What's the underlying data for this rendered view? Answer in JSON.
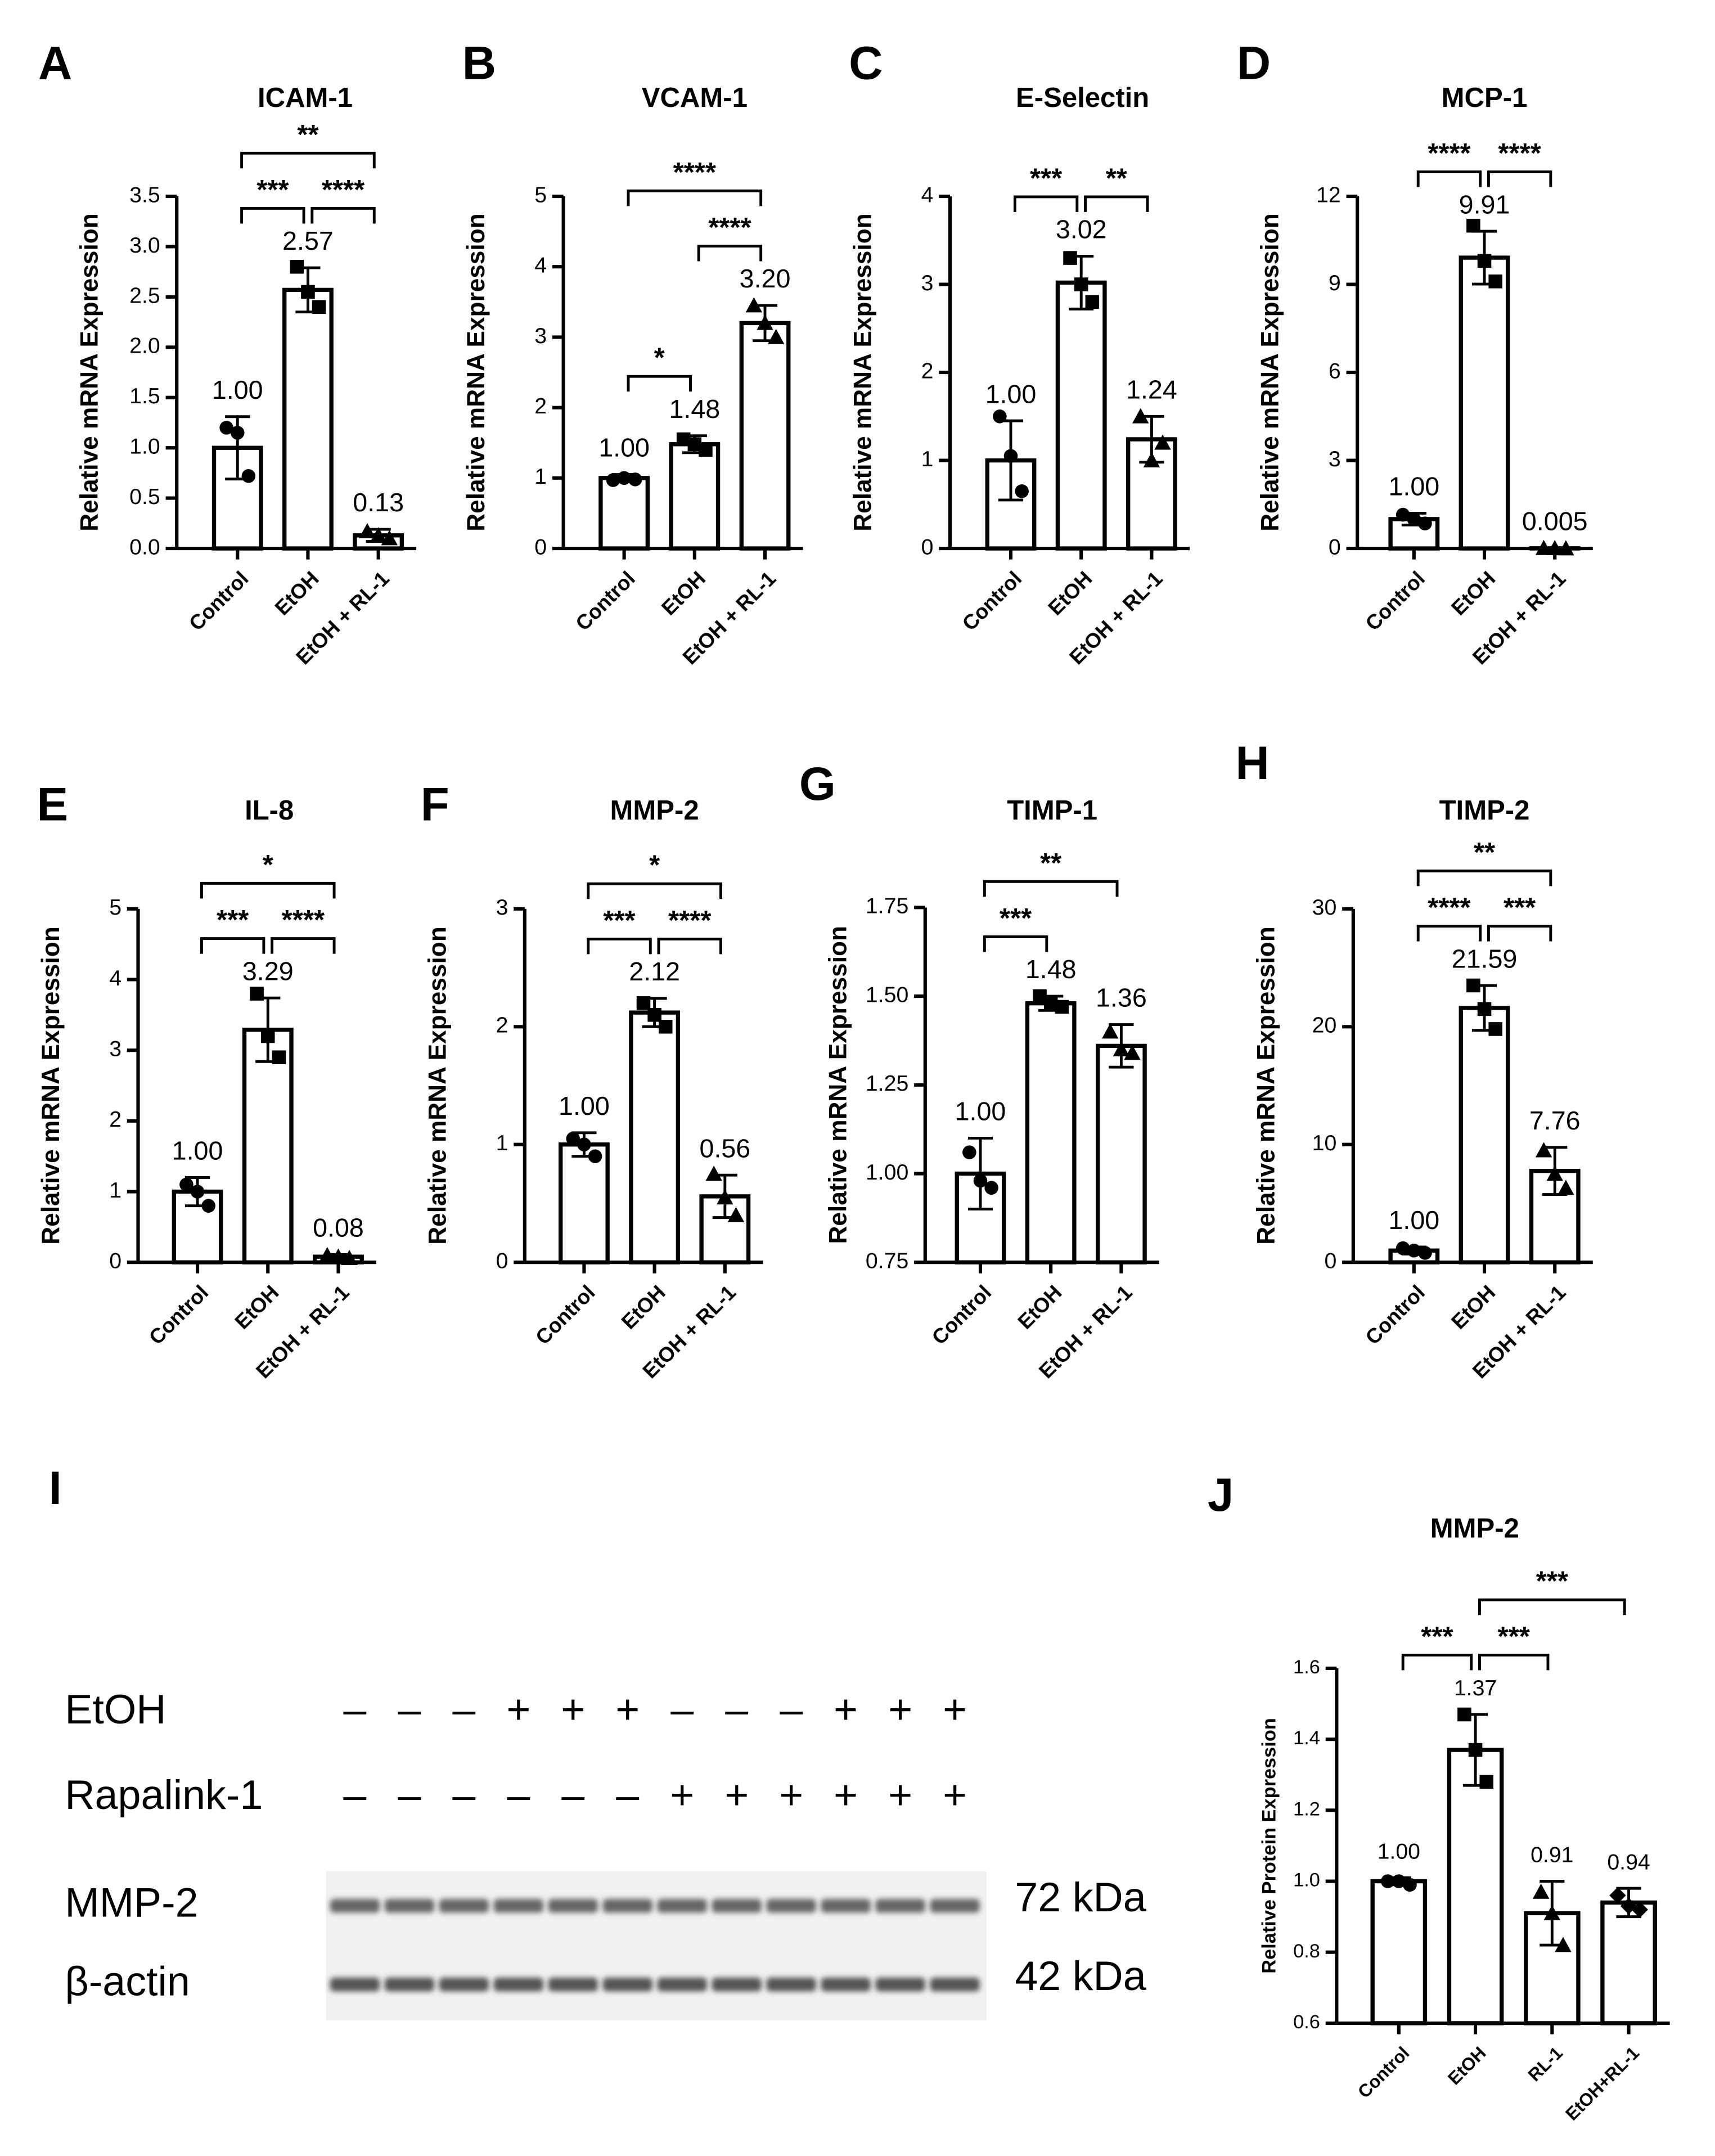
{
  "chart_data": [
    {
      "type": "bar",
      "panel": "A",
      "title": "ICAM-1",
      "ylabel": "Relative mRNA Expression",
      "categories": [
        "Control",
        "EtOH",
        "EtOH + RL-1"
      ],
      "values": [
        1.0,
        2.57,
        0.13
      ],
      "value_labels": [
        "1.00",
        "2.57",
        "0.13"
      ],
      "errors": [
        0.31,
        0.22,
        0.06
      ],
      "points": [
        [
          1.2,
          1.15,
          0.72
        ],
        [
          2.8,
          2.55,
          2.4
        ],
        [
          0.17,
          0.13,
          0.1
        ]
      ],
      "ylim": [
        0,
        3.5
      ],
      "yticks": [
        {
          "value": 0,
          "label": "0.0"
        },
        0.5,
        {
          "value": 1,
          "label": "1.0"
        },
        1.5,
        {
          "value": 2,
          "label": "2.0"
        },
        2.5,
        {
          "value": 3,
          "label": "3.0"
        },
        3.5
      ],
      "brackets": [
        {
          "from": 0,
          "to": 1,
          "label": "***"
        },
        {
          "from": 1,
          "to": 2,
          "label": "****"
        },
        {
          "from": 0,
          "to": 2,
          "label": "**"
        }
      ]
    },
    {
      "type": "bar",
      "panel": "B",
      "title": "VCAM-1",
      "ylabel": "Relative mRNA Expression",
      "categories": [
        "Control",
        "EtOH",
        "EtOH + RL-1"
      ],
      "values": [
        1.0,
        1.48,
        3.2
      ],
      "value_labels": [
        "1.00",
        "1.48",
        "3.20"
      ],
      "errors": [
        0.05,
        0.12,
        0.25
      ],
      "points": [
        [
          0.97,
          1.0,
          0.98
        ],
        [
          1.55,
          1.48,
          1.4
        ],
        [
          3.45,
          3.2,
          3.0
        ]
      ],
      "ylim": [
        0,
        5
      ],
      "yticks": [
        0,
        1,
        2,
        3,
        4,
        5
      ],
      "brackets": [
        {
          "from": 0,
          "to": 1,
          "label": "*"
        },
        {
          "from": 1,
          "to": 2,
          "label": "****"
        },
        {
          "from": 0,
          "to": 2,
          "label": "****"
        }
      ]
    },
    {
      "type": "bar",
      "panel": "C",
      "title": "E-Selectin",
      "ylabel": "Relative mRNA Expression",
      "categories": [
        "Control",
        "EtOH",
        "EtOH + RL-1"
      ],
      "values": [
        1.0,
        3.02,
        1.24
      ],
      "value_labels": [
        "1.00",
        "3.02",
        "1.24"
      ],
      "errors": [
        0.45,
        0.3,
        0.26
      ],
      "points": [
        [
          1.5,
          1.05,
          0.65
        ],
        [
          3.3,
          3.0,
          2.8
        ],
        [
          1.5,
          1.0,
          1.2
        ]
      ],
      "ylim": [
        0,
        4
      ],
      "yticks": [
        0,
        1,
        2,
        3,
        4
      ],
      "brackets": [
        {
          "from": 0,
          "to": 1,
          "label": "***"
        },
        {
          "from": 1,
          "to": 2,
          "label": "**"
        }
      ]
    },
    {
      "type": "bar",
      "panel": "D",
      "title": "MCP-1",
      "ylabel": "Relative mRNA Expression",
      "categories": [
        "Control",
        "EtOH",
        "EtOH + RL-1"
      ],
      "values": [
        1.0,
        9.91,
        0.005
      ],
      "value_labels": [
        "1.00",
        "9.91",
        "0.005"
      ],
      "errors": [
        0.2,
        0.9,
        0.01
      ],
      "points": [
        [
          1.15,
          1.0,
          0.85
        ],
        [
          11.0,
          9.8,
          9.1
        ],
        [
          0.01,
          0.005,
          0.0
        ]
      ],
      "ylim": [
        0,
        12
      ],
      "yticks": [
        0,
        3,
        6,
        9,
        12
      ],
      "brackets": [
        {
          "from": 0,
          "to": 1,
          "label": "****"
        },
        {
          "from": 1,
          "to": 2,
          "label": "****"
        }
      ]
    },
    {
      "type": "bar",
      "panel": "E",
      "title": "IL-8",
      "ylabel": "Relative mRNA Expression",
      "categories": [
        "Control",
        "EtOH",
        "EtOH + RL-1"
      ],
      "values": [
        1.0,
        3.29,
        0.08
      ],
      "value_labels": [
        "1.00",
        "3.29",
        "0.08"
      ],
      "errors": [
        0.2,
        0.45,
        0.03
      ],
      "points": [
        [
          1.1,
          1.0,
          0.8
        ],
        [
          3.8,
          3.2,
          2.9
        ],
        [
          0.1,
          0.08,
          0.06
        ]
      ],
      "ylim": [
        0,
        5
      ],
      "yticks": [
        0,
        1,
        2,
        3,
        4,
        5
      ],
      "brackets": [
        {
          "from": 0,
          "to": 1,
          "label": "***"
        },
        {
          "from": 1,
          "to": 2,
          "label": "****"
        },
        {
          "from": 0,
          "to": 2,
          "label": "*"
        }
      ]
    },
    {
      "type": "bar",
      "panel": "F",
      "title": "MMP-2",
      "ylabel": "Relative mRNA Expression",
      "categories": [
        "Control",
        "EtOH",
        "EtOH + RL-1"
      ],
      "values": [
        1.0,
        2.12,
        0.56
      ],
      "value_labels": [
        "1.00",
        "2.12",
        "0.56"
      ],
      "errors": [
        0.1,
        0.12,
        0.18
      ],
      "points": [
        [
          1.05,
          1.0,
          0.9
        ],
        [
          2.2,
          2.1,
          2.0
        ],
        [
          0.75,
          0.55,
          0.4
        ]
      ],
      "ylim": [
        0,
        3
      ],
      "yticks": [
        0,
        1,
        2,
        3
      ],
      "brackets": [
        {
          "from": 0,
          "to": 1,
          "label": "***"
        },
        {
          "from": 1,
          "to": 2,
          "label": "****"
        },
        {
          "from": 0,
          "to": 2,
          "label": "*"
        }
      ]
    },
    {
      "type": "bar",
      "panel": "G",
      "title": "TIMP-1",
      "ylabel": "Relative mRNA Expression",
      "categories": [
        "Control",
        "EtOH",
        "EtOH + RL-1"
      ],
      "values": [
        1.0,
        1.48,
        1.36
      ],
      "value_labels": [
        "1.00",
        "1.48",
        "1.36"
      ],
      "errors": [
        0.1,
        0.02,
        0.06
      ],
      "points": [
        [
          1.06,
          0.98,
          0.96
        ],
        [
          1.5,
          1.48,
          1.47
        ],
        [
          1.4,
          1.35,
          1.34
        ]
      ],
      "ylim": [
        0.75,
        1.75
      ],
      "yticks": [
        0.75,
        {
          "value": 1,
          "label": "1.00"
        },
        1.25,
        {
          "value": 1.5,
          "label": "1.50"
        },
        1.75
      ],
      "brackets": [
        {
          "from": 0,
          "to": 1,
          "label": "***"
        },
        {
          "from": 0,
          "to": 2,
          "label": "**"
        }
      ]
    },
    {
      "type": "bar",
      "panel": "H",
      "title": "TIMP-2",
      "ylabel": "Relative mRNA Expression",
      "categories": [
        "Control",
        "EtOH",
        "EtOH + RL-1"
      ],
      "values": [
        1.0,
        21.59,
        7.76
      ],
      "value_labels": [
        "1.00",
        "21.59",
        "7.76"
      ],
      "errors": [
        0.3,
        1.9,
        2.0
      ],
      "points": [
        [
          1.2,
          1.0,
          0.8
        ],
        [
          23.5,
          21.5,
          19.8
        ],
        [
          9.5,
          7.5,
          6.3
        ]
      ],
      "ylim": [
        0,
        30
      ],
      "yticks": [
        0,
        10,
        20,
        30
      ],
      "brackets": [
        {
          "from": 0,
          "to": 1,
          "label": "****"
        },
        {
          "from": 1,
          "to": 2,
          "label": "***"
        },
        {
          "from": 0,
          "to": 2,
          "label": "**"
        }
      ]
    },
    {
      "type": "bar",
      "panel": "J",
      "title": "MMP-2",
      "ylabel": "Relative Protein Expression",
      "categories": [
        "Control",
        "EtOH",
        "RL-1",
        "EtOH+RL-1"
      ],
      "values": [
        1.0,
        1.37,
        0.91,
        0.94
      ],
      "value_labels": [
        "1.00",
        "1.37",
        "0.91",
        "0.94"
      ],
      "errors": [
        0.01,
        0.1,
        0.09,
        0.04
      ],
      "points": [
        [
          1.0,
          1.0,
          0.99
        ],
        [
          1.47,
          1.37,
          1.28
        ],
        [
          0.97,
          0.91,
          0.82
        ],
        [
          0.96,
          0.93,
          0.92
        ]
      ],
      "ylim": [
        0.6,
        1.6
      ],
      "yticks": [
        0.6,
        0.8,
        {
          "value": 1,
          "label": "1.0"
        },
        1.2,
        1.4,
        1.6
      ],
      "brackets": [
        {
          "from": 0,
          "to": 1,
          "label": "***"
        },
        {
          "from": 1,
          "to": 2,
          "label": "***"
        },
        {
          "from": 1,
          "to": 3,
          "label": "***"
        }
      ]
    }
  ],
  "blot": {
    "panel": "I",
    "rows": [
      {
        "label": "EtOH",
        "signs": [
          "–",
          "–",
          "–",
          "+",
          "+",
          "+",
          "–",
          "–",
          "–",
          "+",
          "+",
          "+"
        ]
      },
      {
        "label": "Rapalink-1",
        "signs": [
          "–",
          "–",
          "–",
          "–",
          "–",
          "–",
          "+",
          "+",
          "+",
          "+",
          "+",
          "+"
        ]
      }
    ],
    "bands": [
      {
        "label": "MMP-2",
        "size": "72 kDa"
      },
      {
        "label": "β-actin",
        "size": "42 kDa"
      }
    ]
  }
}
